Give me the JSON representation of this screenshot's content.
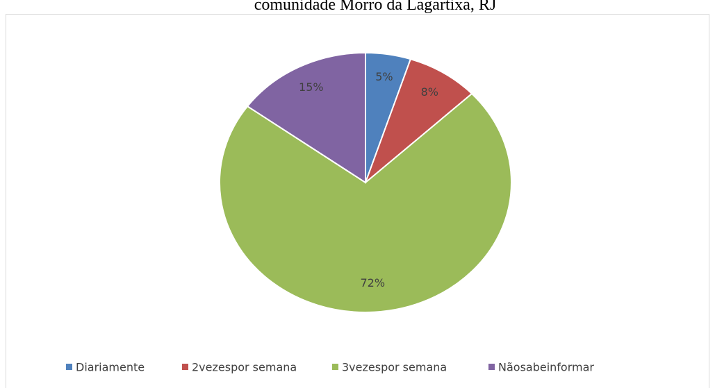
{
  "chart_data": {
    "type": "pie",
    "title": "comunidade Morro da Lagartixa, RJ",
    "categories": [
      "Diariamente",
      "2vezespor semana",
      "3vezespor semana",
      "Nãosabeinformar"
    ],
    "values": [
      5,
      8,
      72,
      15
    ],
    "value_labels": [
      "5%",
      "8%",
      "72%",
      "15%"
    ],
    "colors": [
      "#4f81bd",
      "#c0504d",
      "#9bbb59",
      "#8064a2"
    ],
    "legend": "bottom"
  }
}
